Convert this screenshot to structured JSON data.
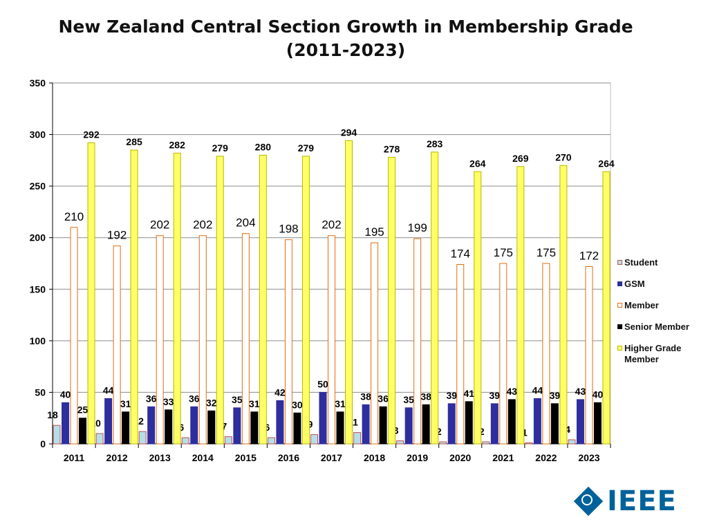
{
  "chart_data": {
    "type": "bar",
    "title": "New Zealand Central Section Growth in Membership Grade (2011-2023)",
    "title_line1": "New Zealand Central Section Growth in Membership Grade",
    "title_line2": "(2011-2023)",
    "xlabel": "",
    "ylabel": "",
    "ylim": [
      0,
      350
    ],
    "yticks": [
      0,
      50,
      100,
      150,
      200,
      250,
      300,
      350
    ],
    "grid": true,
    "legend_position": "right",
    "categories": [
      "2011",
      "2012",
      "2013",
      "2014",
      "2015",
      "2016",
      "2017",
      "2018",
      "2019",
      "2020",
      "2021",
      "2022",
      "2023"
    ],
    "series": [
      {
        "name": "Student",
        "color": "#B7DEE8",
        "border": "#C0504D",
        "values": [
          18,
          10,
          12,
          6,
          7,
          6,
          9,
          11,
          3,
          2,
          2,
          1,
          4
        ]
      },
      {
        "name": "GSM",
        "color": "#2E2E9E",
        "border": "#2E2E9E",
        "values": [
          40,
          44,
          36,
          36,
          35,
          42,
          50,
          38,
          35,
          39,
          39,
          44,
          43
        ]
      },
      {
        "name": "Member",
        "color": "#FFFFFF",
        "border": "#E46C0A",
        "values": [
          210,
          192,
          202,
          202,
          204,
          198,
          202,
          195,
          199,
          174,
          175,
          175,
          172
        ]
      },
      {
        "name": "Senior Member",
        "color": "#000000",
        "border": "#000000",
        "values": [
          25,
          31,
          33,
          32,
          31,
          30,
          31,
          36,
          38,
          41,
          43,
          39,
          40
        ]
      },
      {
        "name": "Higher Grade Member",
        "color": "#FFFF66",
        "border": "#B8B800",
        "values": [
          292,
          285,
          282,
          279,
          280,
          279,
          294,
          278,
          283,
          264,
          269,
          270,
          264
        ]
      }
    ]
  },
  "legend": {
    "items": [
      "Student",
      "GSM",
      "Member",
      "Senior Member",
      "Higher Grade Member"
    ]
  },
  "logo": {
    "wordmark": "IEEE"
  }
}
